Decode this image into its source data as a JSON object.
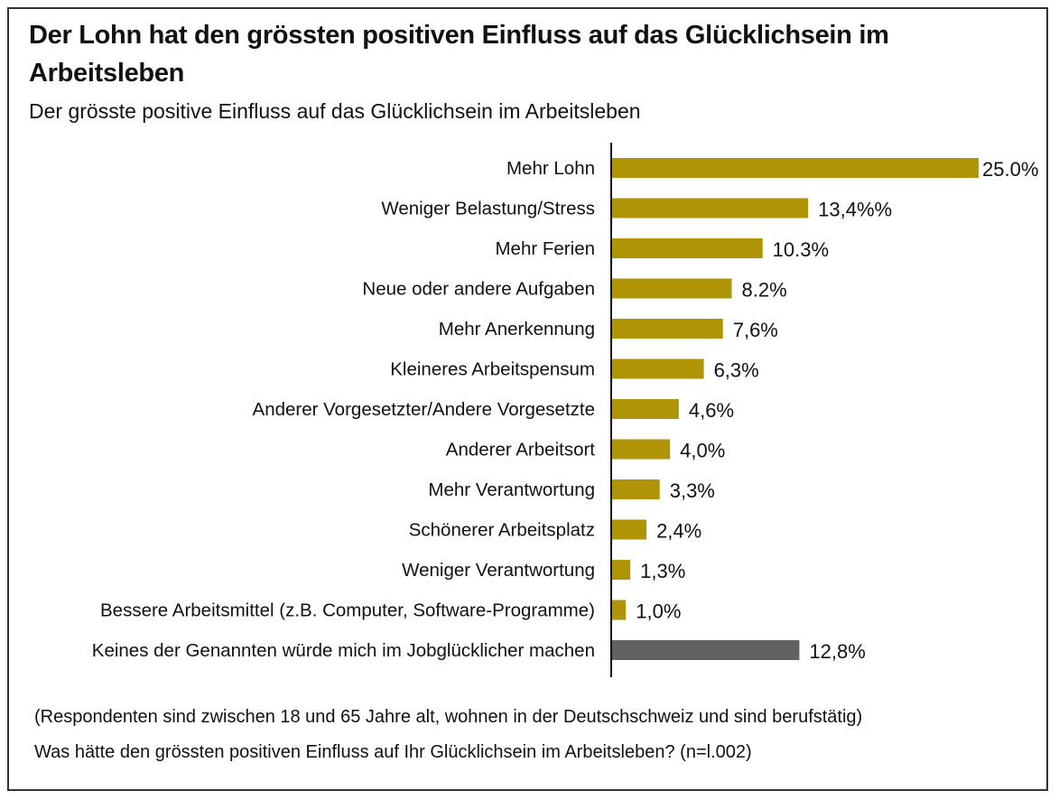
{
  "chart_data": {
    "type": "bar",
    "orientation": "horizontal",
    "title": "Der Lohn hat den grössten positiven Einfluss auf das Glücklichsein im Arbeitsleben",
    "subtitle": "Der grösste positive Einfluss auf das Glücklichsein im Arbeitsleben",
    "categories": [
      "Mehr Lohn",
      "Weniger Belastung/Stress",
      "Mehr Ferien",
      "Neue oder andere Aufgaben",
      "Mehr Anerkennung",
      "Kleineres Arbeitspensum",
      "Anderer Vorgesetzter/Andere Vorgesetzte",
      "Anderer Arbeitsort",
      "Mehr Verantwortung",
      "Schönerer Arbeitsplatz",
      "Weniger Verantwortung",
      "Bessere Arbeitsmittel (z.B. Computer, Software-Programme)",
      "Keines der Genannten würde mich im Jobglücklicher machen"
    ],
    "values": [
      25.0,
      13.4,
      10.3,
      8.2,
      7.6,
      6.3,
      4.6,
      4.0,
      3.3,
      2.4,
      1.3,
      1.0,
      12.8
    ],
    "value_labels": [
      "25.0%",
      "13,4%%",
      "10.3%",
      "8.2%",
      "7,6%",
      "6,3%",
      "4,6%",
      "4,0%",
      "3,3%",
      "2,4%",
      "1,3%",
      "1,0%",
      "12,8%"
    ],
    "bar_colors": [
      "#b09408",
      "#b09408",
      "#b09408",
      "#b09408",
      "#b09408",
      "#b09408",
      "#b09408",
      "#b09408",
      "#b09408",
      "#b09408",
      "#b09408",
      "#b09408",
      "#626262"
    ],
    "xlim": [
      0,
      25
    ],
    "grid": false
  },
  "footnotes": [
    "(Respondenten sind zwischen 18 und 65 Jahre alt, wohnen in der Deutschschweiz und sind berufstätig)",
    "Was hätte den grössten positiven Einfluss auf Ihr Glücklichsein im Arbeitsleben? (n=l.002)"
  ]
}
